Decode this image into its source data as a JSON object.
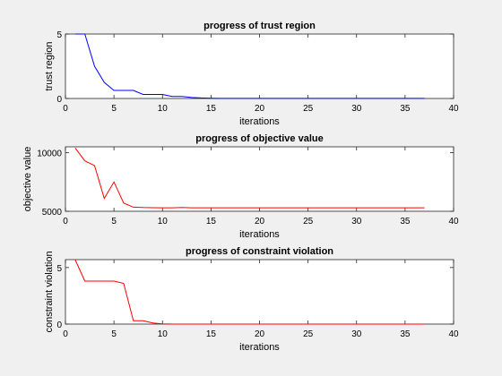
{
  "chart_data": [
    {
      "type": "line",
      "title": "progress of trust region",
      "xlabel": "iterations",
      "ylabel": "trust region",
      "xlim": [
        0,
        40
      ],
      "ylim": [
        0,
        5
      ],
      "xticks": [
        0,
        5,
        10,
        15,
        20,
        25,
        30,
        35,
        40
      ],
      "yticks": [
        0,
        5
      ],
      "ytick_labels": [
        "0",
        "5"
      ],
      "grid": false,
      "series": [
        {
          "color": "#0000ff",
          "x": [
            1,
            2,
            3,
            4,
            5,
            6,
            7,
            8,
            9,
            10,
            11,
            12,
            13,
            14,
            15,
            16,
            17,
            18,
            19,
            20,
            21,
            22,
            23,
            24,
            25,
            26,
            27,
            28,
            29,
            30,
            31,
            32,
            33,
            34,
            35,
            36,
            37
          ],
          "y": [
            5,
            5,
            2.5,
            1.25,
            0.625,
            0.625,
            0.625,
            0.3125,
            0.3125,
            0.3125,
            0.16,
            0.16,
            0.08,
            0.04,
            0.02,
            0.01,
            0.01,
            0.01,
            0.01,
            0.01,
            0.01,
            0.01,
            0.01,
            0.01,
            0.01,
            0.01,
            0.01,
            0.01,
            0.01,
            0.01,
            0.01,
            0.01,
            0.01,
            0.01,
            0.01,
            0.01,
            0.01
          ]
        }
      ]
    },
    {
      "type": "line",
      "title": "progress of objective value",
      "xlabel": "iterations",
      "ylabel": "objective value",
      "xlim": [
        0,
        40
      ],
      "ylim": [
        5000,
        10500
      ],
      "xticks": [
        0,
        5,
        10,
        15,
        20,
        25,
        30,
        35,
        40
      ],
      "yticks": [
        5000,
        10000
      ],
      "ytick_labels": [
        "5000",
        "10000"
      ],
      "grid": false,
      "series": [
        {
          "color": "#ff0000",
          "x": [
            1,
            2,
            3,
            4,
            5,
            6,
            7,
            8,
            9,
            10,
            11,
            12,
            13,
            14,
            15,
            16,
            17,
            18,
            19,
            20,
            21,
            22,
            23,
            24,
            25,
            26,
            27,
            28,
            29,
            30,
            31,
            32,
            33,
            34,
            35,
            36,
            37
          ],
          "y": [
            10400,
            9300,
            8900,
            6100,
            7500,
            5700,
            5350,
            5320,
            5310,
            5300,
            5300,
            5320,
            5300,
            5300,
            5300,
            5300,
            5300,
            5300,
            5300,
            5300,
            5300,
            5300,
            5300,
            5300,
            5300,
            5300,
            5300,
            5300,
            5300,
            5300,
            5300,
            5300,
            5300,
            5300,
            5300,
            5300,
            5300
          ]
        }
      ]
    },
    {
      "type": "line",
      "title": "progress of constraint violation",
      "xlabel": "iterations",
      "ylabel": "constraint violation",
      "xlim": [
        0,
        40
      ],
      "ylim": [
        0,
        5.7
      ],
      "xticks": [
        0,
        5,
        10,
        15,
        20,
        25,
        30,
        35,
        40
      ],
      "yticks": [
        0,
        5
      ],
      "ytick_labels": [
        "0",
        "5"
      ],
      "grid": false,
      "series": [
        {
          "color": "#ff0000",
          "x": [
            1,
            2,
            3,
            4,
            5,
            6,
            7,
            8,
            9,
            10,
            11,
            12,
            13,
            14,
            15,
            16,
            17,
            18,
            19,
            20,
            21,
            22,
            23,
            24,
            25,
            26,
            27,
            28,
            29,
            30,
            31,
            32,
            33,
            34,
            35,
            36,
            37
          ],
          "y": [
            5.7,
            3.8,
            3.8,
            3.8,
            3.8,
            3.6,
            0.3,
            0.3,
            0.1,
            0.02,
            0,
            0,
            0,
            0,
            0,
            0,
            0,
            0,
            0,
            0,
            0,
            0,
            0,
            0,
            0,
            0,
            0,
            0,
            0,
            0,
            0,
            0,
            0,
            0,
            0,
            0,
            0
          ]
        }
      ]
    }
  ]
}
